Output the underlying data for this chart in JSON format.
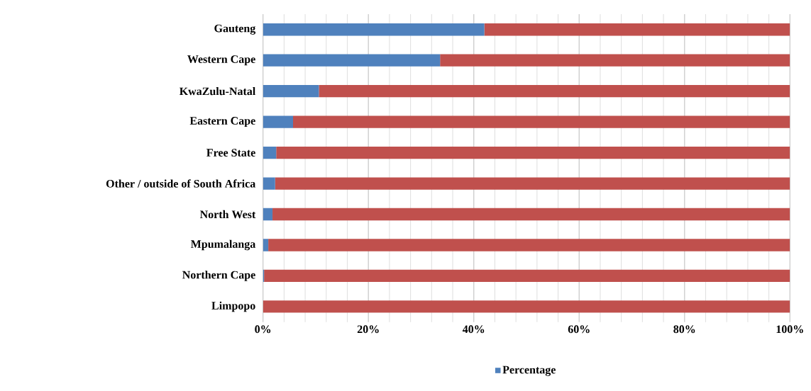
{
  "chart_data": {
    "type": "bar",
    "orientation": "horizontal",
    "stacked": true,
    "categories": [
      "Gauteng",
      "Western Cape",
      "KwaZulu-Natal",
      "Eastern Cape",
      "Free State",
      "Other / outside of South Africa",
      "North West",
      "Mpumalanga",
      "Northern Cape",
      "Limpopo"
    ],
    "series": [
      {
        "name": "Percentage",
        "color": "#4f81bd",
        "values": [
          42,
          33.6,
          10.6,
          5.7,
          2.5,
          2.3,
          1.8,
          1.0,
          0.2,
          0
        ]
      },
      {
        "color": "#c0504d",
        "values": [
          58,
          66.4,
          89.4,
          94.3,
          97.5,
          97.7,
          98.2,
          99.0,
          99.8,
          100
        ]
      }
    ],
    "xlim": [
      0,
      100
    ],
    "xticks": [
      {
        "value": 0,
        "label": "0%"
      },
      {
        "value": 20,
        "label": "20%"
      },
      {
        "value": 40,
        "label": "40%"
      },
      {
        "value": 60,
        "label": "60%"
      },
      {
        "value": 80,
        "label": "80%"
      },
      {
        "value": 100,
        "label": "100%"
      }
    ],
    "grid": "x",
    "legend": "bottom"
  }
}
